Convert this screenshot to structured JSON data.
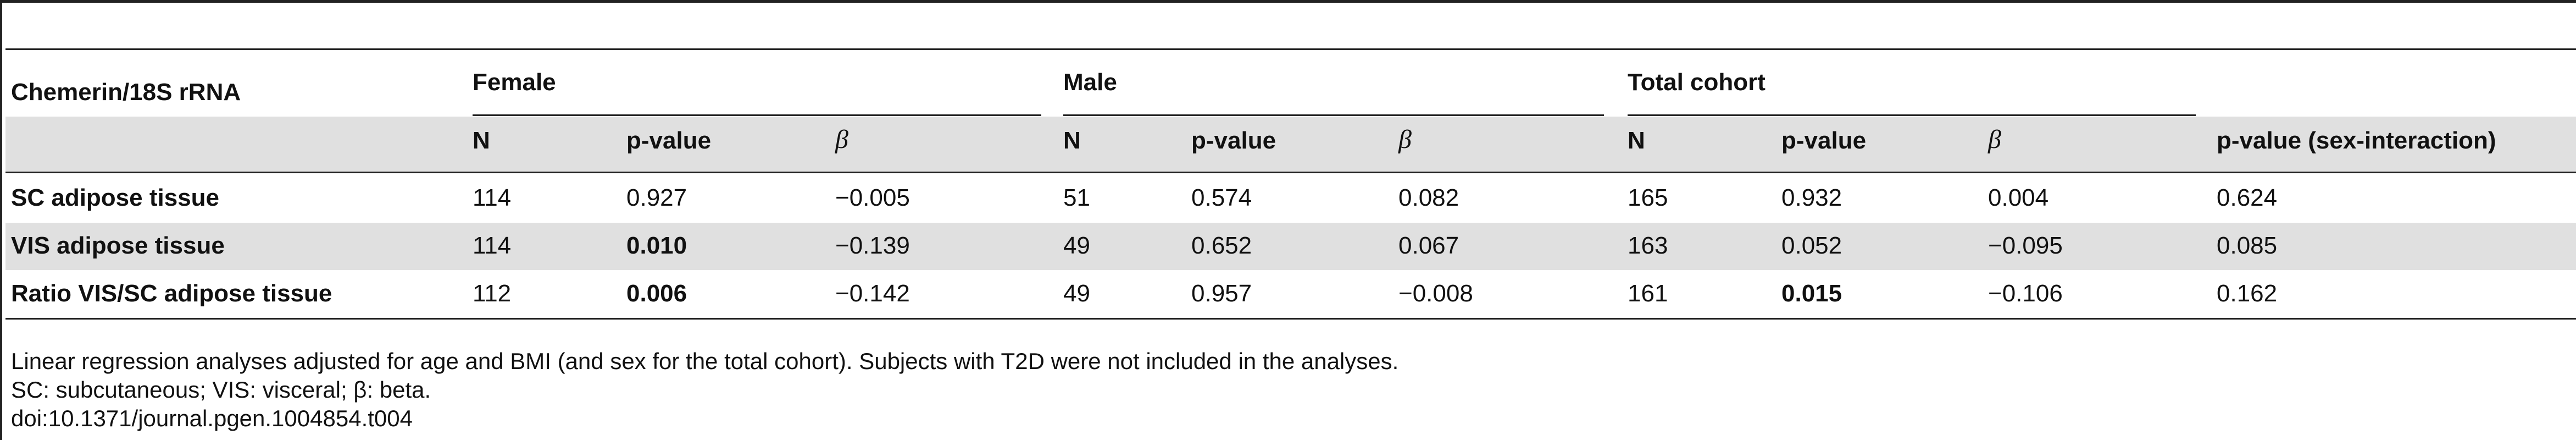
{
  "table": {
    "corner_label": "Chemerin/18S rRNA",
    "groups": [
      "Female",
      "Male",
      "Total cohort"
    ],
    "subheaders": [
      "N",
      "p-value",
      "β",
      "N",
      "p-value",
      "β",
      "N",
      "p-value",
      "β",
      "p-value (sex-interaction)"
    ],
    "rows": [
      {
        "label": "SC adipose tissue",
        "cells": [
          "114",
          "0.927",
          "−0.005",
          "51",
          "0.574",
          "0.082",
          "165",
          "0.932",
          "0.004",
          "0.624"
        ],
        "bold": [
          false,
          false,
          false,
          false,
          false,
          false,
          false,
          false,
          false,
          false
        ]
      },
      {
        "label": "VIS adipose tissue",
        "cells": [
          "114",
          "0.010",
          "−0.139",
          "49",
          "0.652",
          "0.067",
          "163",
          "0.052",
          "−0.095",
          "0.085"
        ],
        "bold": [
          false,
          true,
          false,
          false,
          false,
          false,
          false,
          false,
          false,
          false
        ]
      },
      {
        "label": "Ratio VIS/SC adipose tissue",
        "cells": [
          "112",
          "0.006",
          "−0.142",
          "49",
          "0.957",
          "−0.008",
          "161",
          "0.015",
          "−0.106",
          "0.162"
        ],
        "bold": [
          false,
          true,
          false,
          false,
          false,
          false,
          false,
          true,
          false,
          false
        ]
      }
    ]
  },
  "footnotes": [
    "Linear regression analyses adjusted for age and BMI (and sex for the total cohort). Subjects with T2D were not included in the analyses.",
    "SC: subcutaneous; VIS: visceral; β: beta.",
    "doi:10.1371/journal.pgen.1004854.t004"
  ]
}
